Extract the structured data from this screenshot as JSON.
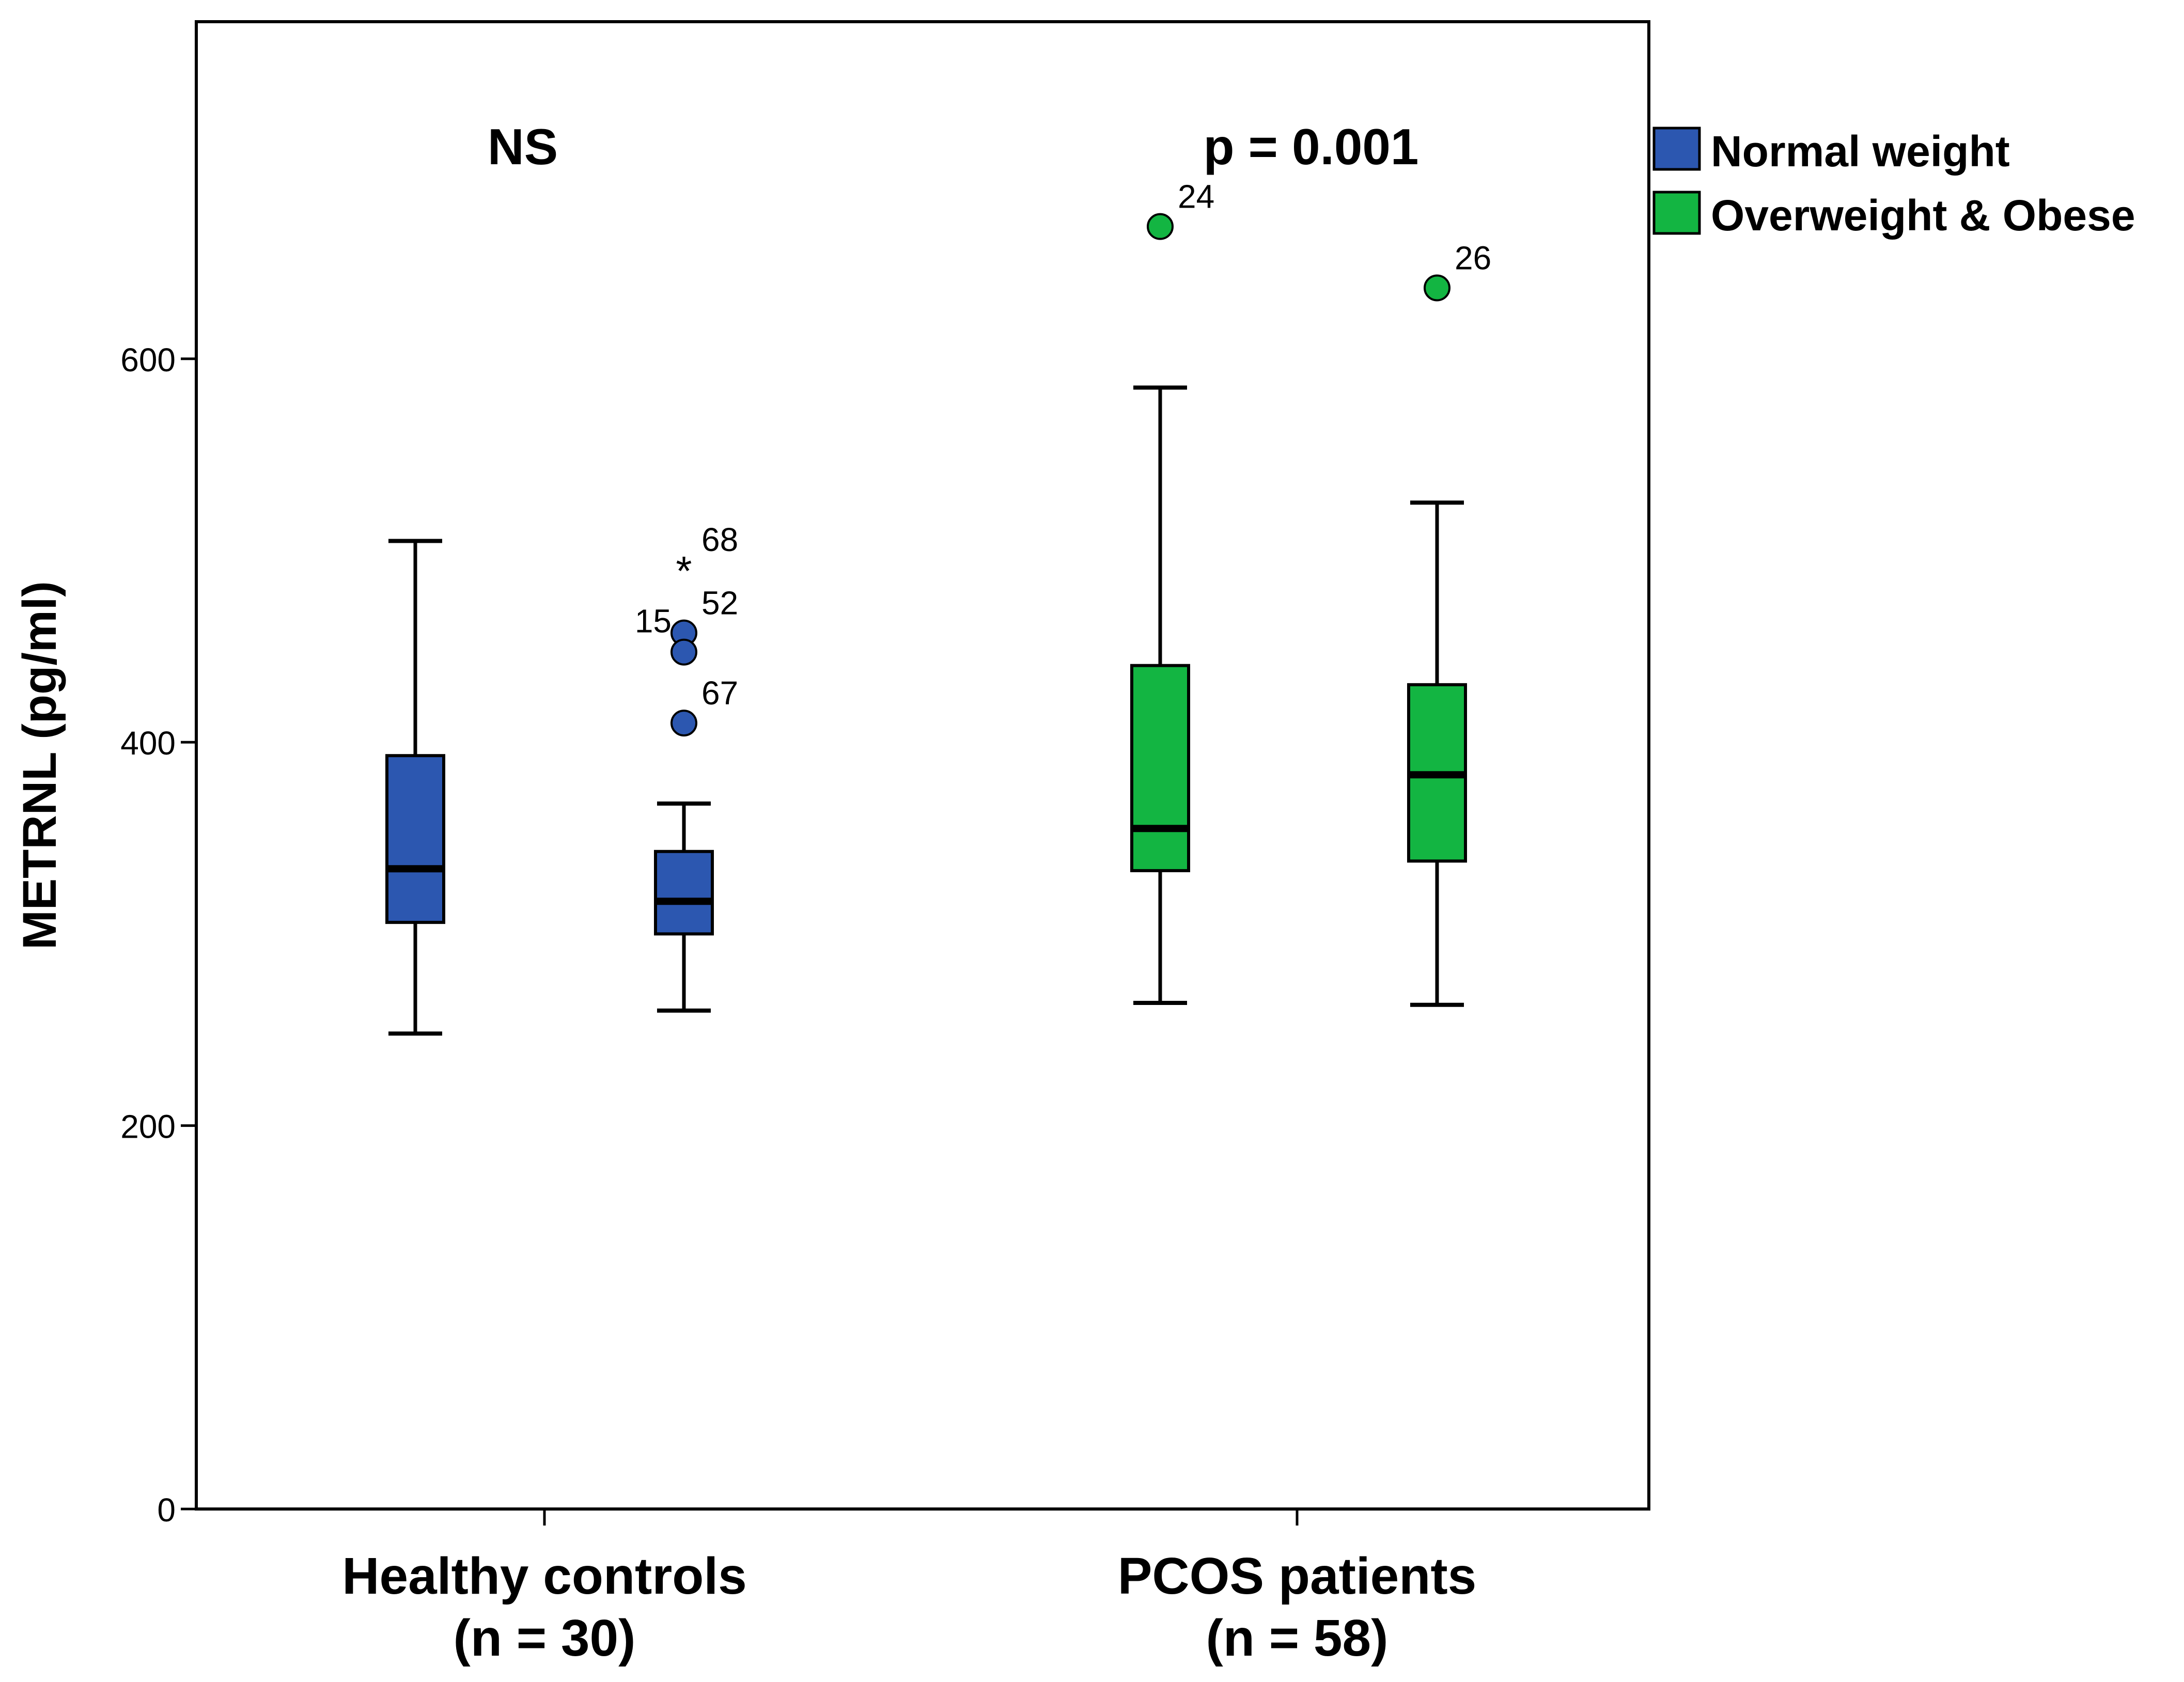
{
  "chart_data": {
    "type": "boxplot",
    "ylabel": "METRNL (pg/ml)",
    "ylim": [
      0,
      780
    ],
    "yticks": [
      0,
      200,
      400,
      600
    ],
    "grid": false,
    "legend_position": "top-right, outside plot",
    "colors": {
      "normal": "#2c57b0",
      "overweight": "#13b542",
      "extreme": "#2c57b0"
    },
    "categories": [
      {
        "label": "Healthy controls",
        "n_label": "(n = 30)",
        "annotation": "NS"
      },
      {
        "label": "PCOS patients",
        "n_label": "(n =  58)",
        "annotation": "p = 0.001"
      }
    ],
    "series": [
      {
        "name": "Normal weight",
        "color": "#2c57b0",
        "boxes": [
          {
            "min": 248,
            "q1": 306,
            "median": 334,
            "q3": 393,
            "max": 505,
            "outliers": []
          },
          {
            "min": 260,
            "q1": 300,
            "median": 317,
            "q3": 343,
            "max": 368,
            "outliers": [
              {
                "value": 490,
                "label": "68",
                "type": "extreme"
              },
              {
                "value": 457,
                "label": "52",
                "type": "outlier"
              },
              {
                "value": 447,
                "label": "15",
                "type": "outlier"
              },
              {
                "value": 410,
                "label": "67",
                "type": "outlier"
              }
            ]
          }
        ]
      },
      {
        "name": "Overweight & Obese",
        "color": "#13b542",
        "boxes": [
          {
            "min": 264,
            "q1": 333,
            "median": 355,
            "q3": 440,
            "max": 585,
            "outliers": [
              {
                "value": 669,
                "label": "24",
                "type": "outlier"
              }
            ]
          },
          {
            "min": 263,
            "q1": 338,
            "median": 383,
            "q3": 430,
            "max": 525,
            "outliers": [
              {
                "value": 637,
                "label": "26",
                "type": "outlier"
              }
            ]
          }
        ]
      }
    ]
  }
}
